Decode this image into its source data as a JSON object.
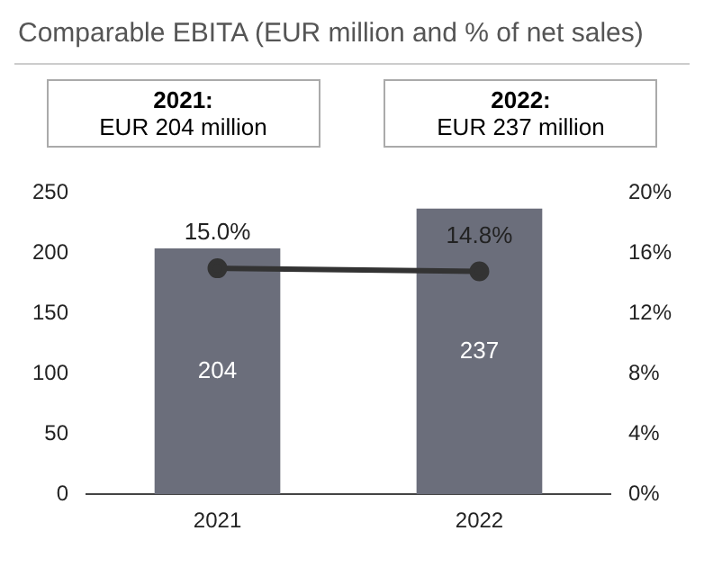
{
  "chart_data": {
    "type": "bar",
    "title": "Comparable EBITA (EUR million and % of net sales)",
    "annotations": [
      "2021:",
      "EUR 204 million",
      "2022:",
      "EUR 237 million"
    ],
    "categories": [
      "2021",
      "2022"
    ],
    "series": [
      {
        "color": "#6b6e7b",
        "values": [
          204,
          237
        ],
        "value_labels": [
          "204",
          "237"
        ]
      },
      {
        "type": "line",
        "axis": "y2",
        "color": "#333333",
        "values": [
          15.0,
          14.8
        ],
        "value_labels": [
          "15.0%",
          "14.8%"
        ],
        "marker": "circle"
      }
    ],
    "ylim": [
      0,
      250
    ],
    "yticks": [
      0,
      50,
      100,
      150,
      200,
      250
    ],
    "y2lim": [
      0,
      20
    ],
    "y2ticks": [
      {
        "value": 0,
        "label": "0%"
      },
      {
        "value": 4,
        "label": "4%"
      },
      {
        "value": 8,
        "label": "8%"
      },
      {
        "value": 12,
        "label": "12%"
      },
      {
        "value": 16,
        "label": "16%"
      },
      {
        "value": 20,
        "label": "20%"
      }
    ],
    "legend": false,
    "grid": false
  }
}
